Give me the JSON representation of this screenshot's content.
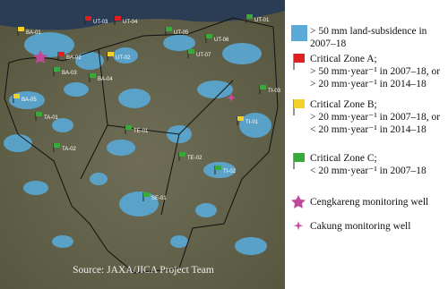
{
  "legend": [
    {
      "lines": [
        "> 50 mm land-subsidence in",
        "2007–18"
      ]
    },
    {
      "lines": [
        "Critical Zone A;",
        "> 50 mm·year⁻¹ in 2007–18, or",
        "> 20 mm·year⁻¹ in 2014–18"
      ]
    },
    {
      "lines": [
        "Critical Zone B;",
        "> 20 mm·year⁻¹ in 2007–18, or",
        "< 20 mm·year⁻¹ in 2014–18"
      ]
    },
    {
      "lines": [
        "Critical Zone C;",
        "< 20 mm·year⁻¹ in 2007–18"
      ]
    },
    {
      "lines": [
        "Cengkareng monitoring well"
      ]
    },
    {
      "lines": [
        "Cakung monitoring well"
      ]
    }
  ],
  "map_labels": [
    "UT-03",
    "UT-04",
    "UT-05",
    "UT-01",
    "UT-06",
    "UT-07",
    "UT-02",
    "BA-01",
    "BA-02",
    "BA-03",
    "BA-04",
    "BA-05",
    "TA-01",
    "TA-02",
    "TE-01",
    "TE-02",
    "SE-01",
    "TI-01",
    "TI-02",
    "TI-03"
  ],
  "source": "Source: JAXA/JICA Project Team"
}
